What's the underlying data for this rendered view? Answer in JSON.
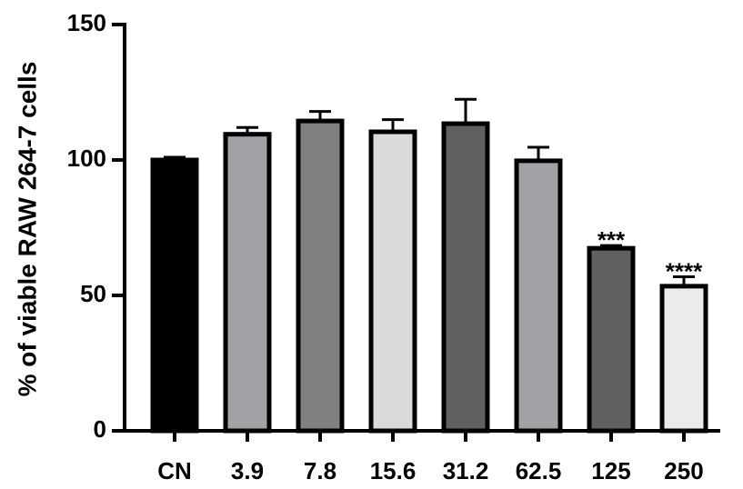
{
  "chart_data": {
    "type": "bar",
    "y_label": "% of viable RAW 264-7 cells",
    "categories": [
      "CN",
      "3.9",
      "7.8",
      "15.6",
      "31.2",
      "62.5",
      "125",
      "250"
    ],
    "values": [
      100,
      109.5,
      114.4,
      110.4,
      113.4,
      99.7,
      67.4,
      53.4
    ],
    "errors": [
      1,
      2.5,
      3.5,
      4.5,
      9,
      5,
      1,
      3.5
    ],
    "colors": [
      "#000000",
      "#a1a1a6",
      "#808080",
      "#dadada",
      "#606060",
      "#a1a1a6",
      "#606060",
      "#ebebeb"
    ],
    "annotations": [
      {
        "category": "125",
        "text": "***"
      },
      {
        "category": "250",
        "text": "****"
      }
    ],
    "ylim": [
      0,
      150
    ],
    "yticks": [
      0,
      50,
      100,
      150
    ],
    "grid": false
  }
}
